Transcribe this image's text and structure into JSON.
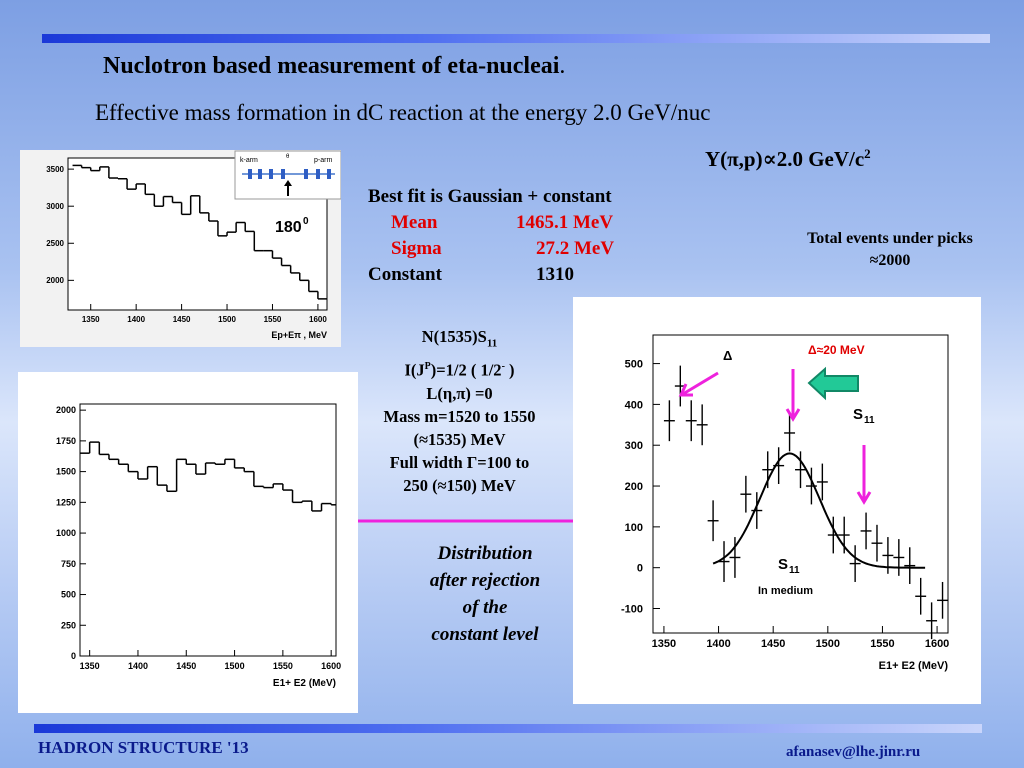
{
  "slide": {
    "title": "Nuclotron based measurement of eta-nucleai",
    "title_suffix": ".",
    "subtitle": "Effective mass formation in dC reaction at the energy 2.0 GeV/nuc",
    "yield_label": "Y(π,p)∝2.0 GeV/c",
    "yield_sup": "2",
    "fit": {
      "heading": "Best fit is Gaussian + constant",
      "mean_label": "Mean",
      "mean_value": "1465.1 MeV",
      "sigma_label": "Sigma",
      "sigma_value": "27.2  MeV",
      "constant_label": "Constant",
      "constant_value": "1310"
    },
    "total_events": {
      "line1": "Total events under picks",
      "line2": "≈2000"
    },
    "state": {
      "line1_main": "N(1535)S",
      "line1_sub": "11",
      "line2": "I(J",
      "line2_sup": "P",
      "line2_rest": ")=1/2 ( 1/2",
      "line2_sup2": "-",
      "line2_end": " )",
      "line3": "L(η,π)  =0",
      "line4": "Mass m=1520 to 1550",
      "line5": "(≈1535) MeV",
      "line6": "Full width Γ=100 to",
      "line7": "250 (≈150) MeV"
    },
    "distribution_note": [
      "Distribution",
      "after rejection",
      "of the",
      "constant level"
    ],
    "footer_left": "HADRON STRUCTURE '13",
    "footer_right": "afanasev@lhe.jinr.ru",
    "colors": {
      "accent_magenta": "#ee22dd",
      "red": "#e00000",
      "arrow_green": "#22c997",
      "footer_blue": "#0a1a8c"
    }
  },
  "chart_data": [
    {
      "type": "line",
      "name": "spectrum-with-constant",
      "xlabel": "Ep+Eπ , MeV",
      "x_ticks": [
        1350,
        1400,
        1450,
        1500,
        1550,
        1600
      ],
      "y_ticks": [
        2000,
        2500,
        3000,
        3500
      ],
      "xlim": [
        1325,
        1610
      ],
      "ylim": [
        1600,
        3650
      ],
      "x": [
        1335,
        1345,
        1355,
        1365,
        1375,
        1385,
        1395,
        1405,
        1415,
        1425,
        1435,
        1445,
        1455,
        1465,
        1475,
        1485,
        1495,
        1505,
        1515,
        1525,
        1535,
        1545,
        1555,
        1565,
        1575,
        1585,
        1595,
        1605
      ],
      "values": [
        3550,
        3520,
        3480,
        3530,
        3380,
        3370,
        3230,
        3300,
        3160,
        3000,
        3130,
        3050,
        2890,
        3140,
        2910,
        2800,
        2600,
        2650,
        2780,
        2660,
        2400,
        2400,
        2300,
        2200,
        2100,
        2000,
        1850,
        1750
      ],
      "annotation": "180",
      "annotation_sup": "0",
      "inset": {
        "left_label": "k-arm",
        "right_label": "p-arm",
        "angle_label": "θ"
      }
    },
    {
      "type": "line",
      "name": "spectrum-after-rejection",
      "xlabel": "E1+ E2 (MeV)",
      "x_ticks": [
        1350,
        1400,
        1450,
        1500,
        1550,
        1600
      ],
      "y_ticks": [
        0,
        250,
        500,
        750,
        1000,
        1250,
        1500,
        1750,
        2000
      ],
      "xlim": [
        1340,
        1605
      ],
      "ylim": [
        0,
        2050
      ],
      "x": [
        1345,
        1355,
        1365,
        1375,
        1385,
        1395,
        1405,
        1415,
        1425,
        1435,
        1445,
        1455,
        1465,
        1475,
        1485,
        1495,
        1505,
        1515,
        1525,
        1535,
        1545,
        1555,
        1565,
        1575,
        1585,
        1595,
        1605
      ],
      "values": [
        1650,
        1740,
        1640,
        1600,
        1560,
        1500,
        1440,
        1540,
        1390,
        1340,
        1600,
        1560,
        1480,
        1570,
        1560,
        1600,
        1530,
        1500,
        1380,
        1370,
        1400,
        1350,
        1250,
        1260,
        1180,
        1240,
        1230
      ]
    },
    {
      "type": "scatter",
      "name": "fitted-peak",
      "xlabel": "E1+ E2 (MeV)",
      "x_ticks": [
        1350,
        1400,
        1450,
        1500,
        1550,
        1600
      ],
      "y_ticks": [
        -100,
        0,
        100,
        200,
        300,
        400,
        500
      ],
      "xlim": [
        1340,
        1610
      ],
      "ylim": [
        -160,
        570
      ],
      "x": [
        1355,
        1365,
        1375,
        1385,
        1395,
        1405,
        1415,
        1425,
        1435,
        1445,
        1455,
        1465,
        1475,
        1485,
        1495,
        1505,
        1515,
        1525,
        1535,
        1545,
        1555,
        1565,
        1575,
        1585,
        1595,
        1605
      ],
      "values": [
        360,
        445,
        360,
        350,
        115,
        15,
        25,
        180,
        140,
        240,
        250,
        330,
        240,
        200,
        210,
        80,
        80,
        10,
        90,
        60,
        30,
        25,
        5,
        -70,
        -130,
        -80
      ],
      "errors": [
        50,
        50,
        50,
        50,
        50,
        50,
        50,
        45,
        45,
        45,
        45,
        45,
        45,
        45,
        45,
        45,
        45,
        45,
        45,
        45,
        45,
        45,
        45,
        45,
        45,
        45
      ],
      "fit_curve": {
        "mean": 1465.1,
        "sigma": 27.2,
        "amplitude": 280
      },
      "annotations": {
        "delta": "Δ",
        "delta_width": "Δ≈20 MeV",
        "s11_main": "S",
        "s11_sub": "11",
        "s11_medium_main": "S",
        "s11_medium_sub": "11",
        "in_medium": "In medium"
      }
    }
  ]
}
